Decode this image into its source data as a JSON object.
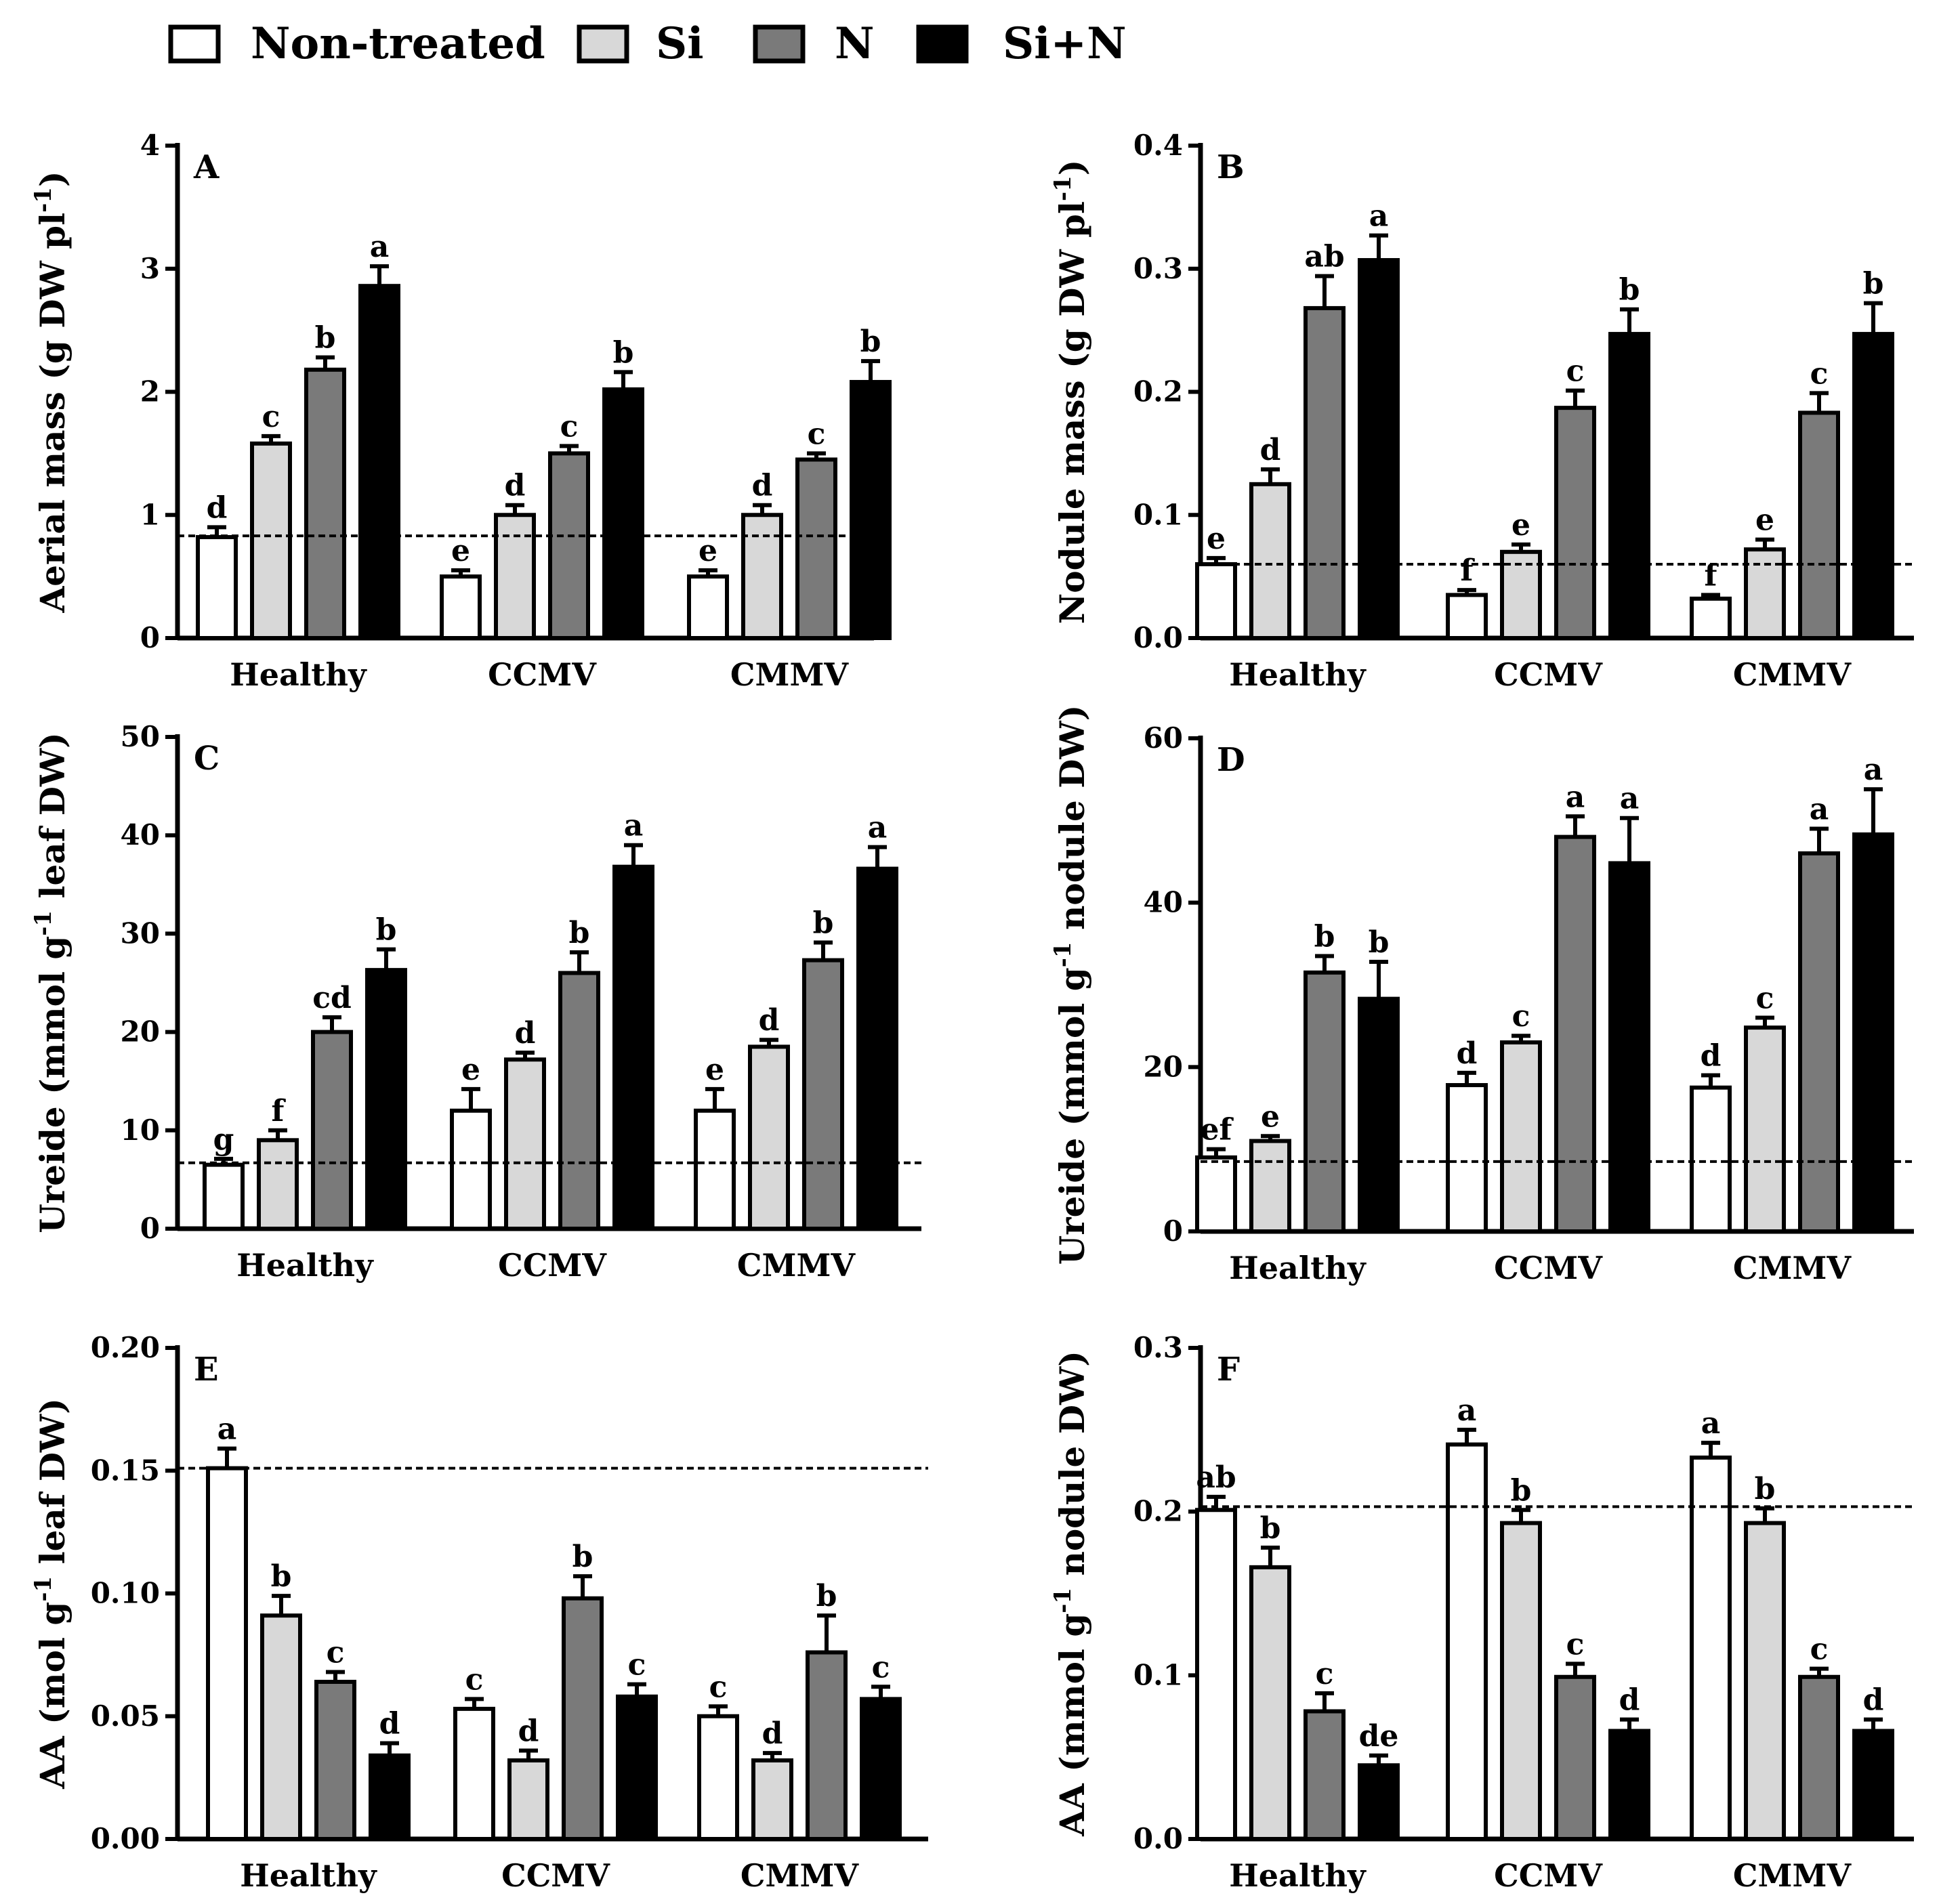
{
  "legend": {
    "items": [
      {
        "label": "Non-treated",
        "fill": "#ffffff"
      },
      {
        "label": "Si",
        "fill": "#d8d8d8"
      },
      {
        "label": "N",
        "fill": "#7a7a7a"
      },
      {
        "label": "Si+N",
        "fill": "#000000"
      }
    ]
  },
  "chart_data": [
    {
      "panel": "A",
      "type": "bar",
      "categories": [
        "Healthy",
        "CCMV",
        "CMMV"
      ],
      "ylabel": [
        "Aerial mass (g DW pl",
        "-1",
        ")"
      ],
      "ylim": [
        0,
        4
      ],
      "yticks": [
        "0",
        "1",
        "2",
        "3",
        "4"
      ],
      "ytick_values": [
        0,
        1,
        2,
        3,
        4
      ],
      "reference_line": 0.83,
      "series": [
        {
          "values": [
            0.82,
            0.5,
            0.5
          ],
          "errors": [
            0.08,
            0.05,
            0.05
          ],
          "letters": [
            "d",
            "e",
            "e"
          ]
        },
        {
          "values": [
            1.58,
            1.0,
            1.0
          ],
          "errors": [
            0.06,
            0.08,
            0.08
          ],
          "letters": [
            "c",
            "d",
            "d"
          ]
        },
        {
          "values": [
            2.18,
            1.5,
            1.45
          ],
          "errors": [
            0.1,
            0.06,
            0.05
          ],
          "letters": [
            "b",
            "c",
            "c"
          ]
        },
        {
          "values": [
            2.86,
            2.02,
            2.08
          ],
          "errors": [
            0.16,
            0.14,
            0.17
          ],
          "letters": [
            "a",
            "b",
            "b"
          ]
        }
      ]
    },
    {
      "panel": "B",
      "type": "bar",
      "categories": [
        "Healthy",
        "CCMV",
        "CMMV"
      ],
      "ylabel": [
        "Nodule mass (g DW pl",
        "-1",
        ")"
      ],
      "ylim": [
        0,
        0.4
      ],
      "yticks": [
        "0.0",
        "0.1",
        "0.2",
        "0.3",
        "0.4"
      ],
      "ytick_values": [
        0,
        0.1,
        0.2,
        0.3,
        0.4
      ],
      "reference_line": 0.06,
      "series": [
        {
          "values": [
            0.06,
            0.035,
            0.032
          ],
          "errors": [
            0.005,
            0.004,
            0.003
          ],
          "letters": [
            "e",
            "f",
            "f"
          ]
        },
        {
          "values": [
            0.125,
            0.07,
            0.072
          ],
          "errors": [
            0.012,
            0.006,
            0.008
          ],
          "letters": [
            "d",
            "e",
            "e"
          ]
        },
        {
          "values": [
            0.268,
            0.187,
            0.183
          ],
          "errors": [
            0.026,
            0.014,
            0.016
          ],
          "letters": [
            "ab",
            "c",
            "c"
          ]
        },
        {
          "values": [
            0.307,
            0.247,
            0.247
          ],
          "errors": [
            0.02,
            0.02,
            0.025
          ],
          "letters": [
            "a",
            "b",
            "b"
          ]
        }
      ]
    },
    {
      "panel": "C",
      "type": "bar",
      "categories": [
        "Healthy",
        "CCMV",
        "CMMV"
      ],
      "ylabel": [
        "Ureide (mmol g",
        "-1",
        " leaf DW)"
      ],
      "ylim": [
        0,
        50
      ],
      "yticks": [
        "0",
        "10",
        "20",
        "30",
        "40",
        "50"
      ],
      "ytick_values": [
        0,
        10,
        20,
        30,
        40,
        50
      ],
      "reference_line": 6.7,
      "series": [
        {
          "values": [
            6.5,
            12.0,
            12.0
          ],
          "errors": [
            0.6,
            2.2,
            2.2
          ],
          "letters": [
            "g",
            "e",
            "e"
          ]
        },
        {
          "values": [
            9.0,
            17.2,
            18.5
          ],
          "errors": [
            1.0,
            0.7,
            0.7
          ],
          "letters": [
            "f",
            "d",
            "d"
          ]
        },
        {
          "values": [
            20.0,
            26.0,
            27.3
          ],
          "errors": [
            1.5,
            2.1,
            1.8
          ],
          "letters": [
            "cd",
            "b",
            "b"
          ]
        },
        {
          "values": [
            26.3,
            36.8,
            36.6
          ],
          "errors": [
            2.1,
            2.2,
            2.2
          ],
          "letters": [
            "b",
            "a",
            "a"
          ]
        }
      ]
    },
    {
      "panel": "D",
      "type": "bar",
      "categories": [
        "Healthy",
        "CCMV",
        "CMMV"
      ],
      "ylabel": [
        "Ureide (mmol g",
        "-1",
        " nodule DW)"
      ],
      "ylim": [
        0,
        60
      ],
      "yticks": [
        "0",
        "20",
        "40",
        "60"
      ],
      "ytick_values": [
        0,
        20,
        40,
        60
      ],
      "reference_line": 8.5,
      "series": [
        {
          "values": [
            9.0,
            17.8,
            17.5
          ],
          "errors": [
            1.0,
            1.5,
            1.5
          ],
          "letters": [
            "ef",
            "d",
            "d"
          ]
        },
        {
          "values": [
            11.0,
            23.0,
            24.8
          ],
          "errors": [
            0.6,
            0.8,
            1.2
          ],
          "letters": [
            "e",
            "c",
            "c"
          ]
        },
        {
          "values": [
            31.5,
            48.0,
            46.0
          ],
          "errors": [
            2.0,
            2.5,
            3.0
          ],
          "letters": [
            "b",
            "a",
            "a"
          ]
        },
        {
          "values": [
            28.3,
            44.8,
            48.3
          ],
          "errors": [
            4.5,
            5.5,
            5.5
          ],
          "letters": [
            "b",
            "a",
            "a"
          ]
        }
      ]
    },
    {
      "panel": "E",
      "type": "bar",
      "categories": [
        "Healthy",
        "CCMV",
        "CMMV"
      ],
      "ylabel": [
        "AA (mol g",
        "-1",
        " leaf DW)"
      ],
      "ylim": [
        0,
        0.2
      ],
      "yticks": [
        "0.00",
        "0.05",
        "0.10",
        "0.15",
        "0.20"
      ],
      "ytick_values": [
        0,
        0.05,
        0.1,
        0.15,
        0.2
      ],
      "reference_line": 0.151,
      "series": [
        {
          "values": [
            0.151,
            0.053,
            0.05
          ],
          "errors": [
            0.008,
            0.004,
            0.004
          ],
          "letters": [
            "a",
            "c",
            "c"
          ]
        },
        {
          "values": [
            0.091,
            0.032,
            0.032
          ],
          "errors": [
            0.008,
            0.004,
            0.003
          ],
          "letters": [
            "b",
            "d",
            "d"
          ]
        },
        {
          "values": [
            0.064,
            0.098,
            0.076
          ],
          "errors": [
            0.004,
            0.009,
            0.015
          ],
          "letters": [
            "c",
            "b",
            "b"
          ]
        },
        {
          "values": [
            0.034,
            0.058,
            0.057
          ],
          "errors": [
            0.005,
            0.005,
            0.005
          ],
          "letters": [
            "d",
            "c",
            "c"
          ]
        }
      ]
    },
    {
      "panel": "F",
      "type": "bar",
      "categories": [
        "Healthy",
        "CCMV",
        "CMMV"
      ],
      "ylabel": [
        "AA (mmol g",
        "-1",
        " nodule DW)"
      ],
      "ylim": [
        0,
        0.3
      ],
      "yticks": [
        "0.0",
        "0.1",
        "0.2",
        "0.3"
      ],
      "ytick_values": [
        0,
        0.1,
        0.2,
        0.3
      ],
      "reference_line": 0.203,
      "series": [
        {
          "values": [
            0.201,
            0.241,
            0.233
          ],
          "errors": [
            0.008,
            0.009,
            0.009
          ],
          "letters": [
            "ab",
            "a",
            "a"
          ]
        },
        {
          "values": [
            0.166,
            0.193,
            0.193
          ],
          "errors": [
            0.012,
            0.008,
            0.009
          ],
          "letters": [
            "b",
            "b",
            "b"
          ]
        },
        {
          "values": [
            0.078,
            0.099,
            0.099
          ],
          "errors": [
            0.011,
            0.008,
            0.005
          ],
          "letters": [
            "c",
            "c",
            "c"
          ]
        },
        {
          "values": [
            0.045,
            0.066,
            0.066
          ],
          "errors": [
            0.006,
            0.007,
            0.007
          ],
          "letters": [
            "de",
            "d",
            "d"
          ]
        }
      ]
    }
  ]
}
